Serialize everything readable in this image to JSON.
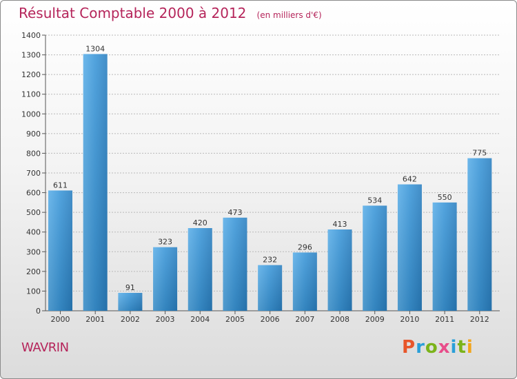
{
  "page": {
    "commune": "WAVRIN",
    "logo_text": "Proxiti",
    "logo_colors": [
      "#e8562a",
      "#2a9fd8",
      "#7bb31a",
      "#e84d8a",
      "#2a9fd8",
      "#7bb31a",
      "#f2a51c"
    ]
  },
  "chart_data": {
    "type": "bar",
    "title": "Résultat Comptable 2000 à 2012",
    "unit_label": "(en milliers d'€)",
    "categories": [
      "2000",
      "2001",
      "2002",
      "2003",
      "2004",
      "2005",
      "2006",
      "2007",
      "2008",
      "2009",
      "2010",
      "2011",
      "2012"
    ],
    "values": [
      611,
      1304,
      91,
      323,
      420,
      473,
      232,
      296,
      413,
      534,
      642,
      550,
      775
    ],
    "ylim": [
      0,
      1400
    ],
    "yticks": [
      0,
      100,
      200,
      300,
      400,
      500,
      600,
      700,
      800,
      900,
      1000,
      1100,
      1200,
      1300,
      1400
    ],
    "grid": true,
    "bar_color": "#3a96d8",
    "title_color": "#b5245a"
  }
}
